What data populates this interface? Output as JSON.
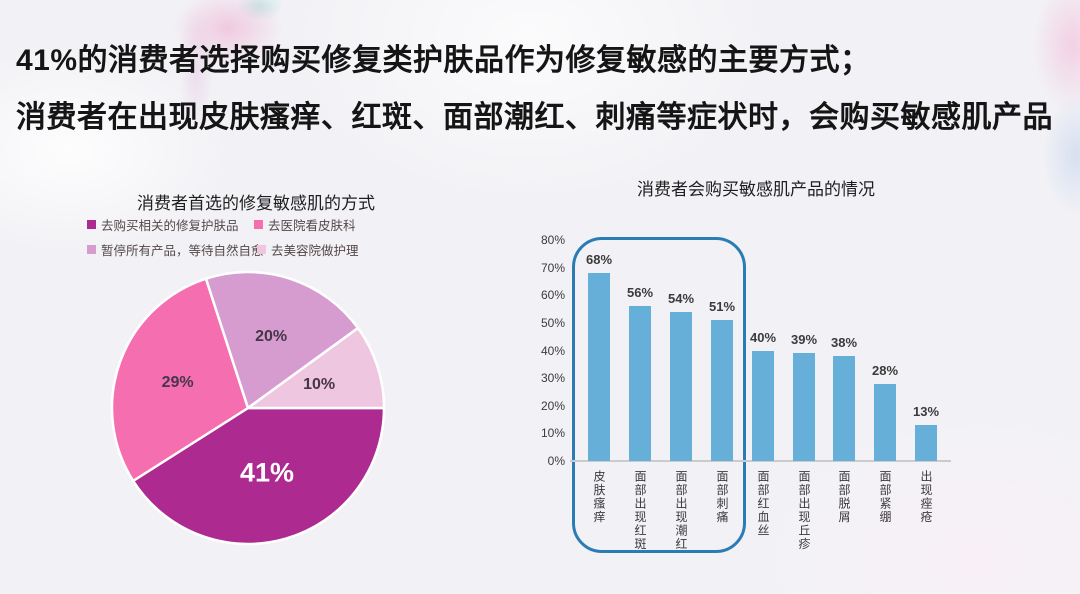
{
  "slide": {
    "title_line1": "41%的消费者选择购买修复类护肤品作为修复敏感的主要方式；",
    "title_line2": "消费者在出现皮肤瘙痒、红斑、面部潮红、刺痛等症状时，会购买敏感肌产品",
    "title_color": "#151515"
  },
  "chart_data": [
    {
      "type": "pie",
      "title": "消费者首选的修复敏感肌的方式",
      "labels": [
        "去购买相关的修复护肤品",
        "去医院看皮肤科",
        "暂停所有产品，等待自然自愈",
        "去美容院做护理"
      ],
      "values": [
        41,
        29,
        20,
        10
      ],
      "value_labels": [
        "41%",
        "29%",
        "20%",
        "10%"
      ],
      "colors": [
        "#ad2b90",
        "#f56fb0",
        "#d69cd0",
        "#eec6e0"
      ],
      "slice_border_color": "#ffffff",
      "start_angle_deg": 90,
      "direction": "clockwise",
      "legend_position": "top-left-2x2"
    },
    {
      "type": "bar",
      "title": "消费者会购买敏感肌产品的情况",
      "categories": [
        "皮肤瘙痒",
        "面部出现红斑",
        "面部出现潮红",
        "面部刺痛",
        "面部红血丝",
        "面部出现丘疹",
        "面部脱屑",
        "面部紧绷",
        "出现痤疮"
      ],
      "values": [
        68,
        56,
        54,
        51,
        40,
        39,
        38,
        28,
        13
      ],
      "data_labels": [
        "68%",
        "56%",
        "54%",
        "51%",
        "40%",
        "39%",
        "38%",
        "28%",
        "13%"
      ],
      "bar_color": "#66afd9",
      "ylim": [
        0,
        80
      ],
      "y_tick_step": 10,
      "y_tick_labels": [
        "0%",
        "10%",
        "20%",
        "30%",
        "40%",
        "50%",
        "60%",
        "70%",
        "80%"
      ],
      "grid": false,
      "highlight_box": {
        "first_n_categories": 4,
        "stroke_color": "#2b7cb5"
      }
    }
  ]
}
